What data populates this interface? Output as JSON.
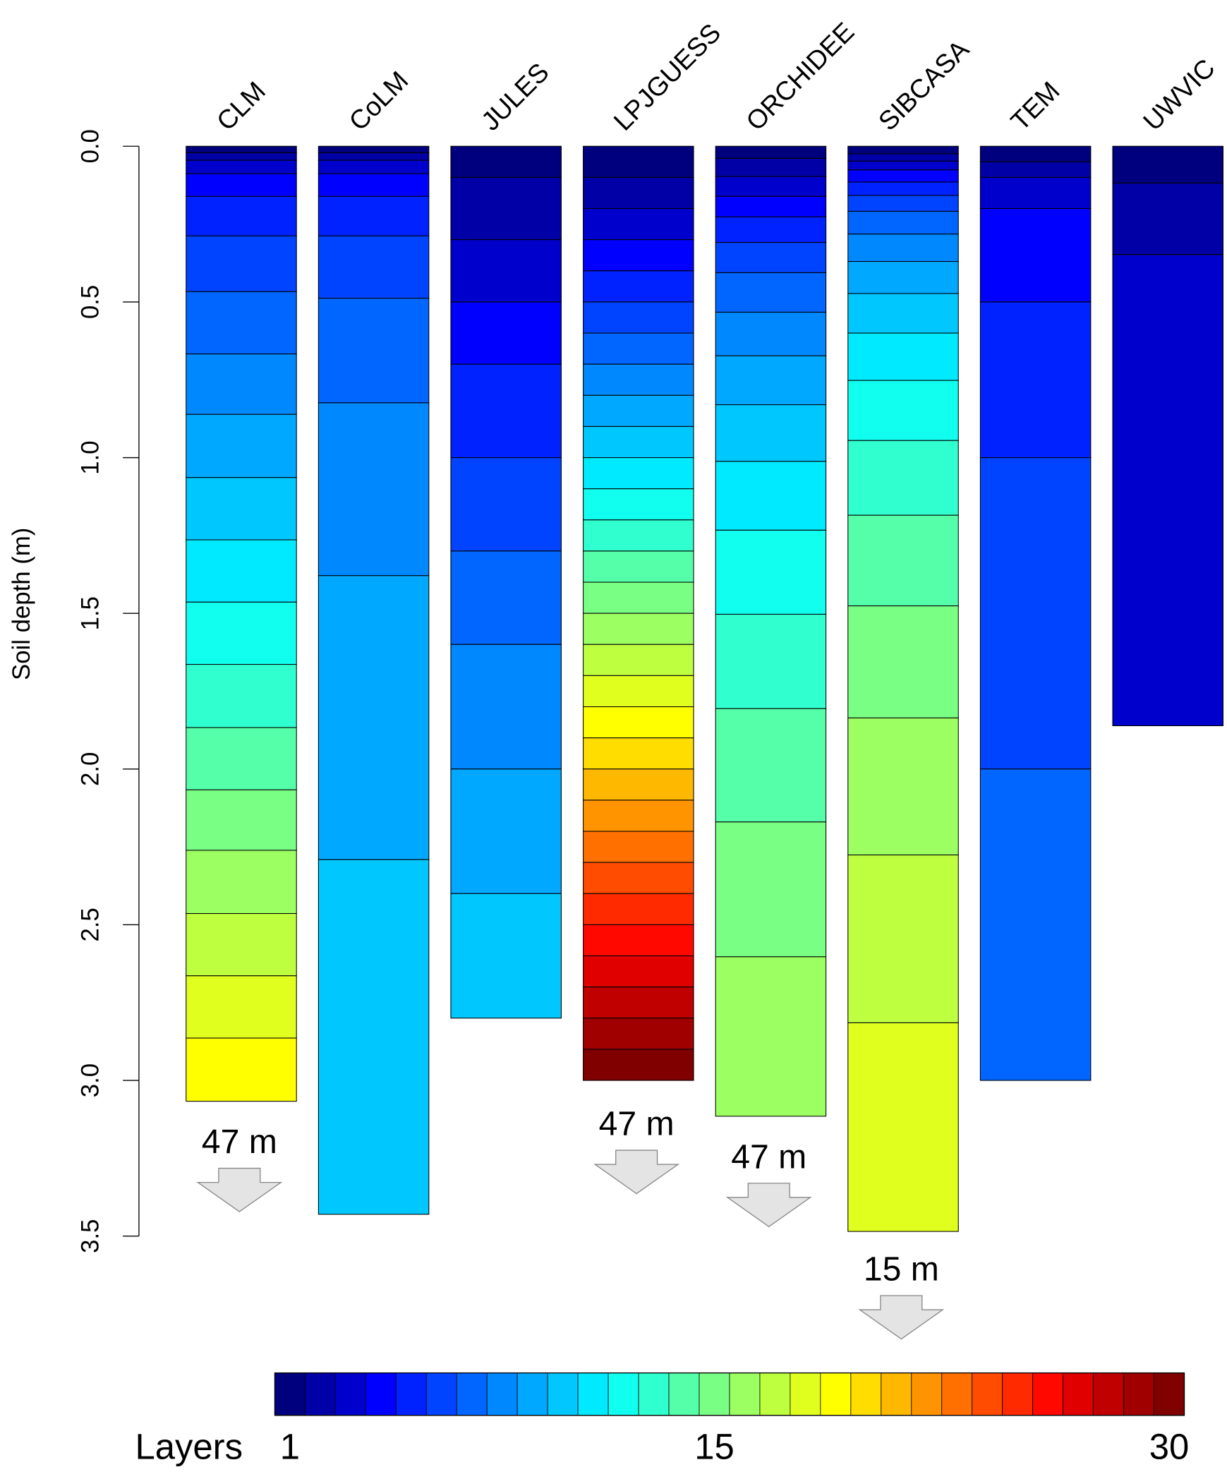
{
  "chart_data": {
    "type": "bar",
    "subtype": "stacked-layer-columns",
    "ylabel": "Soil depth (m)",
    "ylim": [
      0,
      3.5
    ],
    "yticks": [
      "0.0",
      "0.5",
      "1.0",
      "1.5",
      "2.0",
      "2.5",
      "3.0",
      "3.5"
    ],
    "ytick_values": [
      0,
      0.5,
      1.0,
      1.5,
      2.0,
      2.5,
      3.0,
      3.5
    ],
    "y_inverted": true,
    "categories": [
      "CLM",
      "CoLM",
      "JULES",
      "LPJGUESS",
      "ORCHIDEE",
      "SIBCASA",
      "TEM",
      "UWVIC"
    ],
    "series": [
      {
        "name": "CLM",
        "layer_boundaries_m": [
          0,
          0.021,
          0.045,
          0.088,
          0.161,
          0.288,
          0.467,
          0.667,
          0.861,
          1.064,
          1.264,
          1.464,
          1.664,
          1.867,
          2.067,
          2.261,
          2.464,
          2.664,
          2.864,
          3.067
        ],
        "annotation": "47 m"
      },
      {
        "name": "CoLM",
        "layer_boundaries_m": [
          0,
          0.021,
          0.045,
          0.088,
          0.161,
          0.288,
          0.488,
          0.824,
          1.379,
          2.291,
          3.43
        ]
      },
      {
        "name": "JULES",
        "layer_boundaries_m": [
          0,
          0.1,
          0.3,
          0.5,
          0.7,
          1.0,
          1.3,
          1.6,
          2.0,
          2.4,
          2.8
        ]
      },
      {
        "name": "LPJGUESS",
        "layer_boundaries_m": [
          0,
          0.1,
          0.2,
          0.3,
          0.4,
          0.5,
          0.6,
          0.7,
          0.8,
          0.9,
          1.0,
          1.1,
          1.2,
          1.3,
          1.4,
          1.5,
          1.6,
          1.7,
          1.8,
          1.9,
          2.0,
          2.1,
          2.2,
          2.3,
          2.4,
          2.5,
          2.6,
          2.7,
          2.8,
          2.9,
          3.0
        ],
        "annotation": "47 m"
      },
      {
        "name": "ORCHIDEE",
        "layer_boundaries_m": [
          0,
          0.039,
          0.097,
          0.161,
          0.227,
          0.309,
          0.406,
          0.533,
          0.673,
          0.83,
          1.012,
          1.233,
          1.503,
          1.806,
          2.17,
          2.603,
          3.115
        ],
        "annotation": "47 m"
      },
      {
        "name": "SIBCASA",
        "layer_boundaries_m": [
          0,
          0.024,
          0.048,
          0.076,
          0.115,
          0.158,
          0.209,
          0.282,
          0.37,
          0.473,
          0.6,
          0.752,
          0.945,
          1.185,
          1.476,
          1.836,
          2.276,
          2.815,
          3.485
        ],
        "annotation": "15 m"
      },
      {
        "name": "TEM",
        "layer_boundaries_m": [
          0,
          0.05,
          0.1,
          0.2,
          0.5,
          1.0,
          2.0,
          3.0
        ]
      },
      {
        "name": "UWVIC",
        "layer_boundaries_m": [
          0,
          0.118,
          0.348,
          1.861
        ]
      }
    ],
    "legend": {
      "title": "Layers",
      "placement": "bottom",
      "tick_labels": [
        "1",
        "15",
        "30"
      ],
      "tick_values": [
        1,
        15,
        30
      ],
      "colors": [
        "#00007f",
        "#0000a6",
        "#0000cc",
        "#0000ff",
        "#0022ff",
        "#0044ff",
        "#0066ff",
        "#0088ff",
        "#00a8ff",
        "#00c8ff",
        "#00eaff",
        "#10ffef",
        "#30ffcf",
        "#55ffaa",
        "#7aff85",
        "#9cff62",
        "#beff40",
        "#e0ff1f",
        "#ffff00",
        "#ffdd00",
        "#ffb800",
        "#ff9400",
        "#ff7000",
        "#ff4c00",
        "#ff2a00",
        "#ff0800",
        "#e00000",
        "#c00000",
        "#a00000",
        "#800000"
      ]
    }
  }
}
